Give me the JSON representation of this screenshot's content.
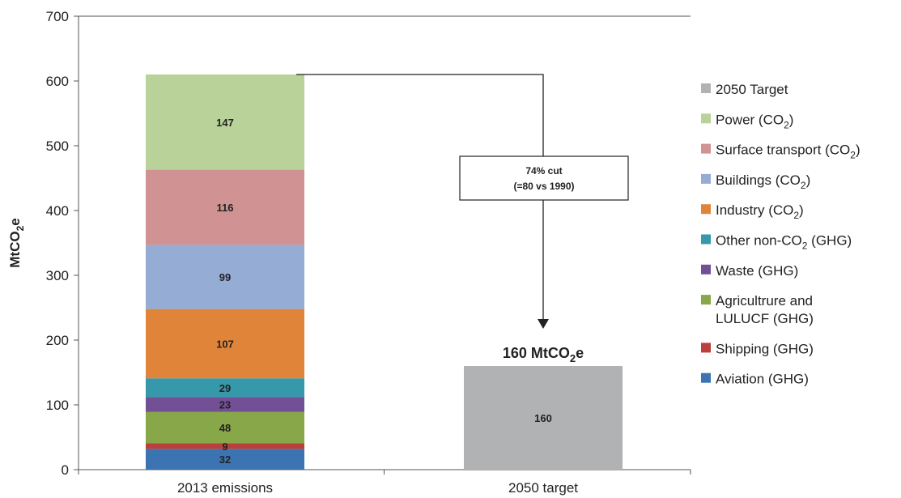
{
  "chart_data": {
    "type": "bar",
    "stacked": true,
    "categories": [
      "2013 emissions",
      "2050 target"
    ],
    "ylabel_main": "MtCO",
    "ylabel_sub": "2",
    "ylabel_tail": "e",
    "ylim": [
      0,
      700
    ],
    "yticks": [
      0,
      100,
      200,
      300,
      400,
      500,
      600,
      700
    ],
    "grid": false,
    "legend_position": "right",
    "series": [
      {
        "name": "Aviation (GHG)",
        "legend_lines": [
          {
            "t": "Aviation (GHG)"
          }
        ],
        "color": "#3c74b2",
        "values": [
          32,
          0
        ],
        "labels": [
          "32",
          ""
        ]
      },
      {
        "name": "Shipping (GHG)",
        "legend_lines": [
          {
            "t": "Shipping (GHG)"
          }
        ],
        "color": "#bb3f3c",
        "values": [
          9,
          0
        ],
        "labels": [
          "9",
          ""
        ]
      },
      {
        "name": "Agricultrure and LULUCF (GHG)",
        "legend_lines": [
          {
            "t": "Agricultrure and"
          },
          {
            "t": "LULUCF (GHG)"
          }
        ],
        "color": "#88a748",
        "values": [
          48,
          0
        ],
        "labels": [
          "48",
          ""
        ]
      },
      {
        "name": "Waste (GHG)",
        "legend_lines": [
          {
            "t": "Waste (GHG)"
          }
        ],
        "color": "#734f96",
        "values": [
          23,
          0
        ],
        "labels": [
          "23",
          ""
        ]
      },
      {
        "name": "Other non-CO2 (GHG)",
        "legend_lines": [
          {
            "t": "Other non-CO",
            "sub": "2",
            "t2": " (GHG)"
          }
        ],
        "color": "#3598ab",
        "values": [
          29,
          0
        ],
        "labels": [
          "29",
          ""
        ]
      },
      {
        "name": "Industry (CO2)",
        "legend_lines": [
          {
            "t": "Industry (CO",
            "sub": "2",
            "t2": ")"
          }
        ],
        "color": "#e0843a",
        "values": [
          107,
          0
        ],
        "labels": [
          "107",
          ""
        ]
      },
      {
        "name": "Buildings (CO2)",
        "legend_lines": [
          {
            "t": "Buildings (CO",
            "sub": "2",
            "t2": ")"
          }
        ],
        "color": "#95acd5",
        "values": [
          99,
          0
        ],
        "labels": [
          "99",
          ""
        ]
      },
      {
        "name": "Surface transport (CO2)",
        "legend_lines": [
          {
            "t": "Surface transport (CO",
            "sub": "2",
            "t2": ")"
          }
        ],
        "color": "#d09292",
        "values": [
          116,
          0
        ],
        "labels": [
          "116",
          ""
        ]
      },
      {
        "name": "Power (CO2)",
        "legend_lines": [
          {
            "t": "Power (CO",
            "sub": "2",
            "t2": ")"
          }
        ],
        "color": "#b9d29a",
        "values": [
          147,
          0
        ],
        "labels": [
          "147",
          ""
        ]
      },
      {
        "name": "2050 Target",
        "legend_lines": [
          {
            "t": "2050 Target"
          }
        ],
        "color": "#b1b2b4",
        "values": [
          0,
          160
        ],
        "labels": [
          "",
          "160"
        ]
      }
    ],
    "annotations": {
      "cut_line1": "74% cut",
      "cut_line2": "(=80 vs 1990)",
      "target_main": "160 MtCO",
      "target_sub": "2",
      "target_tail": "e"
    }
  }
}
